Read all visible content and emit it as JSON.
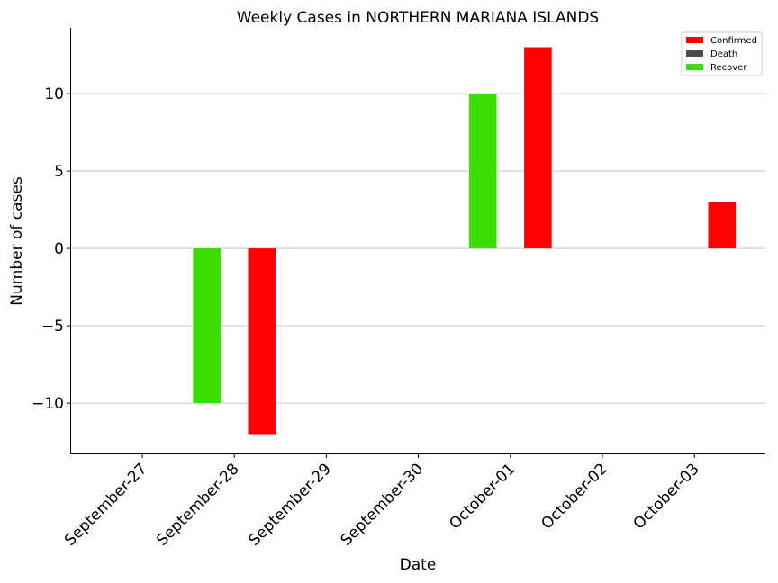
{
  "chart_data": {
    "type": "bar",
    "title": "Weekly Cases in NORTHERN MARIANA ISLANDS",
    "xlabel": "Date",
    "ylabel": "Number of cases",
    "categories": [
      "September-27",
      "September-28",
      "September-29",
      "September-30",
      "October-01",
      "October-02",
      "October-03"
    ],
    "series": [
      {
        "name": "Recover",
        "color": "#3ddc00",
        "values": [
          0,
          -10,
          0,
          0,
          10,
          0,
          0
        ]
      },
      {
        "name": "Death",
        "color": "#4d4d4d",
        "values": [
          0,
          0,
          0,
          0,
          0,
          0,
          0
        ]
      },
      {
        "name": "Confirmed",
        "color": "#ff0000",
        "values": [
          0,
          -12,
          0,
          0,
          13,
          0,
          3
        ]
      }
    ],
    "legend_order": [
      "Confirmed",
      "Death",
      "Recover"
    ],
    "ylim": [
      -13.25,
      14.25
    ],
    "yticks": [
      -10,
      -5,
      0,
      5,
      10
    ],
    "ytick_labels": [
      "−10",
      "−5",
      "0",
      "5",
      "10"
    ],
    "grid": "horizontal",
    "legend_position": "top-right"
  }
}
